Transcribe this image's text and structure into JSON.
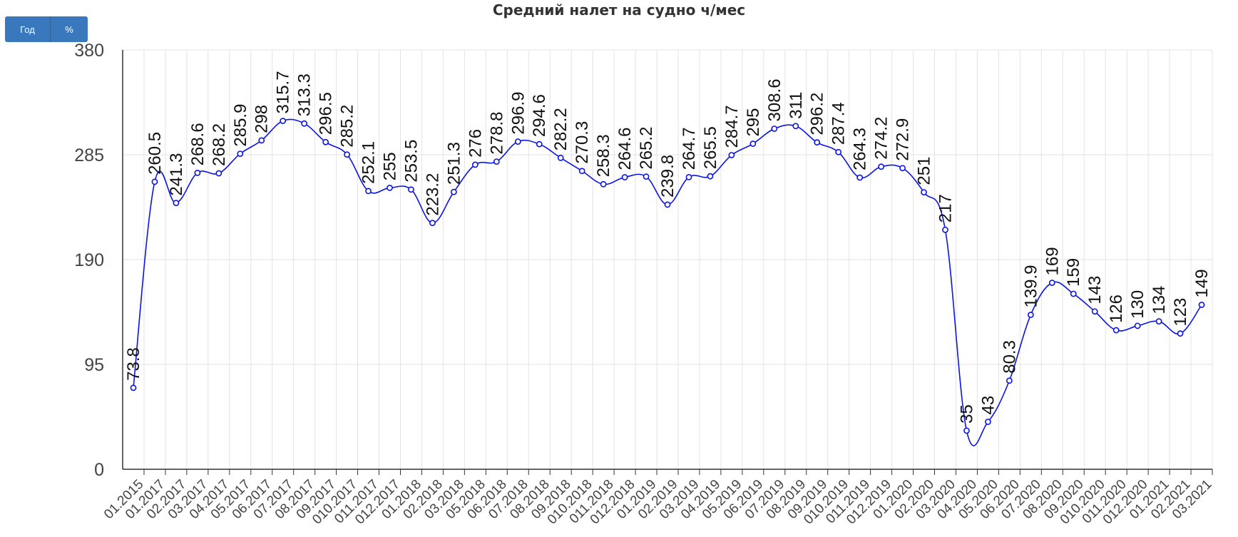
{
  "toolbar": {
    "year_label": "Год",
    "percent_label": "%"
  },
  "chart_data": {
    "type": "line",
    "title": "Средний налет на судно ч/мес",
    "xlabel": "",
    "ylabel": "",
    "ylim": [
      0,
      380
    ],
    "yticks": [
      0,
      95,
      190,
      285,
      380
    ],
    "grid": true,
    "colors": {
      "line": "#0a14e6",
      "grid": "#e3e3e3"
    },
    "categories": [
      "01.2015",
      "01.2017",
      "02.2017",
      "03.2017",
      "04.2017",
      "05.2017",
      "06.2017",
      "07.2017",
      "08.2017",
      "09.2017",
      "010.2017",
      "011.2017",
      "012.2017",
      "01.2018",
      "02.2018",
      "03.2018",
      "05.2018",
      "06.2018",
      "07.2018",
      "08.2018",
      "09.2018",
      "010.2018",
      "011.2018",
      "012.2018",
      "01.2019",
      "02.2019",
      "03.2019",
      "04.2019",
      "05.2019",
      "06.2019",
      "07.2019",
      "08.2019",
      "09.2019",
      "010.2019",
      "011.2019",
      "012.2019",
      "01.2020",
      "02.2020",
      "03.2020",
      "04.2020",
      "05.2020",
      "06.2020",
      "07.2020",
      "08.2020",
      "09.2020",
      "010.2020",
      "011.2020",
      "012.2020",
      "01.2021",
      "02.2021",
      "03.2021"
    ],
    "series": [
      {
        "values": [
          73.8,
          260.5,
          241.3,
          268.6,
          268.2,
          285.9,
          298,
          315.7,
          313.3,
          296.5,
          285.2,
          252.1,
          255,
          253.5,
          223.2,
          251.3,
          276,
          278.8,
          296.9,
          294.6,
          282.2,
          270.3,
          258.3,
          264.6,
          265.2,
          239.8,
          264.7,
          265.5,
          284.7,
          295,
          308.6,
          311,
          296.2,
          287.4,
          264.3,
          274.2,
          272.9,
          251,
          217,
          35,
          43,
          80.3,
          139.9,
          169,
          159,
          143,
          126,
          130,
          134,
          123,
          149
        ]
      }
    ]
  }
}
